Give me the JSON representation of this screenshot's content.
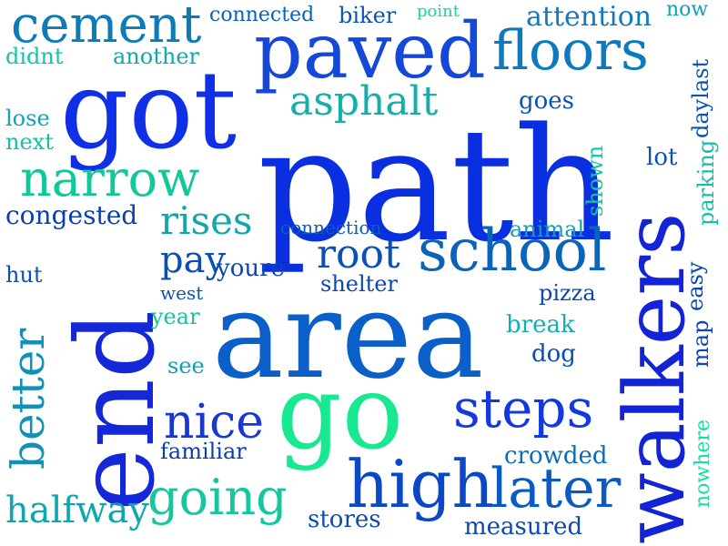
{
  "words": [
    {
      "text": "path",
      "color": "#0a2fe0"
    },
    {
      "text": "area",
      "color": "#0a5fc8"
    },
    {
      "text": "end",
      "color": "#1428d8"
    },
    {
      "text": "got",
      "color": "#1030e8"
    },
    {
      "text": "walkers",
      "color": "#1224d6"
    },
    {
      "text": "go",
      "color": "#18e890"
    },
    {
      "text": "paved",
      "color": "#1448d8"
    },
    {
      "text": "floors",
      "color": "#0d7ac0"
    },
    {
      "text": "cement",
      "color": "#0b7cb8"
    },
    {
      "text": "school",
      "color": "#0a64b8"
    },
    {
      "text": "high",
      "color": "#0b48c6"
    },
    {
      "text": "later",
      "color": "#0b5ac2"
    },
    {
      "text": "steps",
      "color": "#1438e0"
    },
    {
      "text": "narrow",
      "color": "#12c89a"
    },
    {
      "text": "going",
      "color": "#16c6a0"
    },
    {
      "text": "nice",
      "color": "#1838d0"
    },
    {
      "text": "better",
      "color": "#1190b8"
    },
    {
      "text": "asphalt",
      "color": "#14b0a8"
    },
    {
      "text": "root",
      "color": "#0b4fb8"
    },
    {
      "text": "rises",
      "color": "#10a8ac"
    },
    {
      "text": "halfway",
      "color": "#10a6b0"
    },
    {
      "text": "pay",
      "color": "#0b4eb2"
    },
    {
      "text": "congested",
      "color": "#0b40b0"
    },
    {
      "text": "attention",
      "color": "#0e7ac0"
    },
    {
      "text": "connected",
      "color": "#0b62b8"
    },
    {
      "text": "biker",
      "color": "#0b54b6"
    },
    {
      "text": "point",
      "color": "#16d89e"
    },
    {
      "text": "now",
      "color": "#10a2b0"
    },
    {
      "text": "didnt",
      "color": "#14c4a6"
    },
    {
      "text": "another",
      "color": "#12a8ae"
    },
    {
      "text": "lose",
      "color": "#10a4b0"
    },
    {
      "text": "next",
      "color": "#14c0a6"
    },
    {
      "text": "west",
      "color": "#0b52b4"
    },
    {
      "text": "hut",
      "color": "#0b52b4"
    },
    {
      "text": "goes",
      "color": "#0b52b4"
    },
    {
      "text": "lot",
      "color": "#0b52b4"
    },
    {
      "text": "shown",
      "color": "#14c4a6"
    },
    {
      "text": "parking",
      "color": "#14bea8"
    },
    {
      "text": "daylast",
      "color": "#0b52b4"
    },
    {
      "text": "connection",
      "color": "#0b5eb6"
    },
    {
      "text": "animal",
      "color": "#10a0b0"
    },
    {
      "text": "youre",
      "color": "#0b46b4"
    },
    {
      "text": "easy",
      "color": "#0b46b4"
    },
    {
      "text": "shelter",
      "color": "#0b46b4"
    },
    {
      "text": "pizza",
      "color": "#0b46b4"
    },
    {
      "text": "map",
      "color": "#0b46b4"
    },
    {
      "text": "year",
      "color": "#14c0a6"
    },
    {
      "text": "break",
      "color": "#12aeb0"
    },
    {
      "text": "see",
      "color": "#10a0b0"
    },
    {
      "text": "dog",
      "color": "#0b4eb2"
    },
    {
      "text": "familiar",
      "color": "#0b3cb0"
    },
    {
      "text": "crowded",
      "color": "#0e6ab8"
    },
    {
      "text": "nowhere",
      "color": "#18dca0"
    },
    {
      "text": "stores",
      "color": "#0b4cb2"
    },
    {
      "text": "measured",
      "color": "#0b48b2"
    }
  ]
}
